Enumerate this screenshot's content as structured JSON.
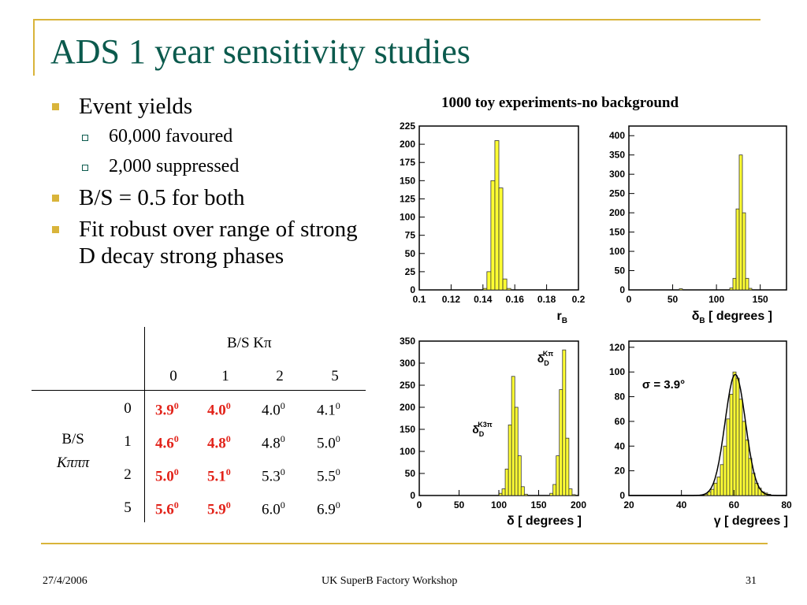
{
  "slide": {
    "title": "ADS 1 year sensitivity studies",
    "bullets": [
      {
        "text": "Event yields"
      },
      {
        "text": "60,000 favoured"
      },
      {
        "text": "2,000 suppressed"
      },
      {
        "text": "B/S = 0.5 for both"
      },
      {
        "text": "Fit robust over range of strong D decay strong phases"
      }
    ],
    "right_title": "1000 toy experiments-no background"
  },
  "table": {
    "col_header": "B/S Kπ",
    "col_values": [
      "0",
      "1",
      "2",
      "5"
    ],
    "row_header_line1": "B/S",
    "row_header_line2": "Kπππ",
    "row_values": [
      "0",
      "1",
      "2",
      "5"
    ],
    "cells": [
      [
        {
          "base": "3.9",
          "sup": "0",
          "red": true
        },
        {
          "base": "4.0",
          "sup": "0",
          "red": true
        },
        {
          "base": "4.0",
          "sup": "0",
          "red": false
        },
        {
          "base": "4.1",
          "sup": "0",
          "red": false
        }
      ],
      [
        {
          "base": "4.6",
          "sup": "0",
          "red": true
        },
        {
          "base": "4.8",
          "sup": "0",
          "red": true
        },
        {
          "base": "4.8",
          "sup": "0",
          "red": false
        },
        {
          "base": "5.0",
          "sup": "0",
          "red": false
        }
      ],
      [
        {
          "base": "5.0",
          "sup": "0",
          "red": true
        },
        {
          "base": "5.1",
          "sup": "0",
          "red": true
        },
        {
          "base": "5.3",
          "sup": "0",
          "red": false
        },
        {
          "base": "5.5",
          "sup": "0",
          "red": false
        }
      ],
      [
        {
          "base": "5.6",
          "sup": "0",
          "red": true
        },
        {
          "base": "5.9",
          "sup": "0",
          "red": true
        },
        {
          "base": "6.0",
          "sup": "0",
          "red": false
        },
        {
          "base": "6.9",
          "sup": "0",
          "red": false
        }
      ]
    ]
  },
  "footer": {
    "date": "27/4/2006",
    "center": "UK SuperB Factory Workshop",
    "page": "31"
  },
  "colors": {
    "fill": "#ffff33",
    "title": "#0b5a4d",
    "red": "#e2231a",
    "accent": "#d9b43a"
  },
  "chart_data": [
    {
      "type": "bar",
      "xlabel": "r_B",
      "xlim": [
        0.1,
        0.2
      ],
      "ylim": [
        0,
        225
      ],
      "xticks": [
        "0.1",
        "0.12",
        "0.14",
        "0.16",
        "0.18",
        "0.2"
      ],
      "yticks": [
        "0",
        "25",
        "50",
        "75",
        "100",
        "125",
        "150",
        "175",
        "200",
        "225"
      ],
      "bin_width": 0.0025,
      "bins": [
        [
          0.14,
          2
        ],
        [
          0.1425,
          25
        ],
        [
          0.145,
          150
        ],
        [
          0.1475,
          205
        ],
        [
          0.15,
          140
        ],
        [
          0.1525,
          15
        ],
        [
          0.155,
          2
        ]
      ]
    },
    {
      "type": "bar",
      "xlabel": "δ_B [ degrees ]",
      "xlim": [
        0,
        180
      ],
      "ylim": [
        0,
        425
      ],
      "xticks": [
        "0",
        "50",
        "100",
        "150"
      ],
      "yticks": [
        "0",
        "50",
        "100",
        "150",
        "200",
        "250",
        "300",
        "350",
        "400"
      ],
      "bin_width": 3.6,
      "bins": [
        [
          57.6,
          3
        ],
        [
          115.2,
          5
        ],
        [
          118.8,
          30
        ],
        [
          122.4,
          210
        ],
        [
          126.0,
          350
        ],
        [
          129.6,
          200
        ],
        [
          133.2,
          30
        ],
        [
          136.8,
          4
        ]
      ]
    },
    {
      "type": "bar",
      "xlabel": "δ [ degrees ]",
      "xlim": [
        0,
        200
      ],
      "ylim": [
        0,
        350
      ],
      "xticks": [
        "0",
        "50",
        "100",
        "150",
        "200"
      ],
      "yticks": [
        "0",
        "50",
        "100",
        "150",
        "200",
        "250",
        "300",
        "350"
      ],
      "bin_width": 4,
      "annotations": [
        "δ_D^{K3π}",
        "δ_D^{Kπ}"
      ],
      "bins": [
        [
          100,
          5
        ],
        [
          104,
          15
        ],
        [
          108,
          60
        ],
        [
          112,
          160
        ],
        [
          116,
          270
        ],
        [
          120,
          200
        ],
        [
          124,
          90
        ],
        [
          128,
          20
        ],
        [
          132,
          3
        ],
        [
          164,
          5
        ],
        [
          168,
          25
        ],
        [
          172,
          90
        ],
        [
          176,
          240
        ],
        [
          180,
          330
        ],
        [
          184,
          130
        ],
        [
          188,
          15
        ],
        [
          192,
          2
        ]
      ]
    },
    {
      "type": "bar",
      "xlabel": "γ [ degrees ]",
      "xlim": [
        20,
        80
      ],
      "ylim": [
        0,
        125
      ],
      "xticks": [
        "20",
        "40",
        "60",
        "80"
      ],
      "yticks": [
        "0",
        "20",
        "40",
        "60",
        "80",
        "100",
        "120"
      ],
      "bin_width": 1.2,
      "annotation": "σ = 3.9°",
      "fit": {
        "mean": 60.5,
        "sigma": 3.9,
        "peak": 98
      },
      "bins": [
        [
          48.8,
          1
        ],
        [
          50.0,
          3
        ],
        [
          51.2,
          5
        ],
        [
          52.4,
          10
        ],
        [
          53.6,
          15
        ],
        [
          54.8,
          25
        ],
        [
          56.0,
          40
        ],
        [
          57.2,
          62
        ],
        [
          58.4,
          82
        ],
        [
          59.6,
          100
        ],
        [
          60.8,
          95
        ],
        [
          62.0,
          78
        ],
        [
          63.2,
          60
        ],
        [
          64.4,
          45
        ],
        [
          65.6,
          30
        ],
        [
          66.8,
          18
        ],
        [
          68.0,
          10
        ],
        [
          69.2,
          6
        ],
        [
          70.4,
          3
        ],
        [
          71.6,
          2
        ],
        [
          72.8,
          1
        ]
      ]
    }
  ]
}
